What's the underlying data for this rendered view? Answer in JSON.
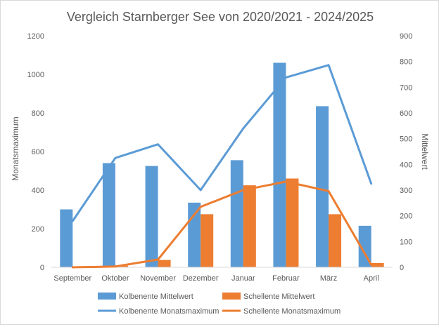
{
  "chart_data": {
    "type": "bar",
    "title": "Vergleich Starnberger See von 2020/2021 - 2024/2025",
    "categories": [
      "September",
      "Oktober",
      "November",
      "Dezember",
      "Januar",
      "Februar",
      "März",
      "April"
    ],
    "ylabel_left": "Monatsmaximum",
    "ylabel_right": "Mittelwert",
    "ylim_left": [
      0,
      1200
    ],
    "ylim_right": [
      0,
      900
    ],
    "yticks_left": [
      "0",
      "200",
      "400",
      "600",
      "800",
      "1000",
      "1200"
    ],
    "yticks_right": [
      "0",
      "100",
      "200",
      "300",
      "400",
      "500",
      "600",
      "700",
      "800",
      "900"
    ],
    "grid": false,
    "legend_position": "bottom",
    "series": [
      {
        "name": "Kolbenente Mittelwert",
        "kind": "bar",
        "axis": "left",
        "color": "#5b9bd5",
        "values": [
          300,
          540,
          525,
          335,
          555,
          1060,
          835,
          215
        ]
      },
      {
        "name": "Schellente Mittelwert",
        "kind": "bar",
        "axis": "left",
        "color": "#ed7d31",
        "values": [
          0,
          8,
          38,
          275,
          425,
          460,
          275,
          22
        ]
      },
      {
        "name": "Kolbenente Monatsmaximum",
        "kind": "line",
        "axis": "right",
        "color": "#5b9bd5",
        "values": [
          180,
          425,
          478,
          300,
          540,
          738,
          786,
          325
        ]
      },
      {
        "name": "Schellente Monatsmaximum",
        "kind": "line",
        "axis": "right",
        "color": "#ed7d31",
        "values": [
          0,
          3,
          30,
          235,
          300,
          333,
          296,
          10
        ]
      }
    ]
  }
}
